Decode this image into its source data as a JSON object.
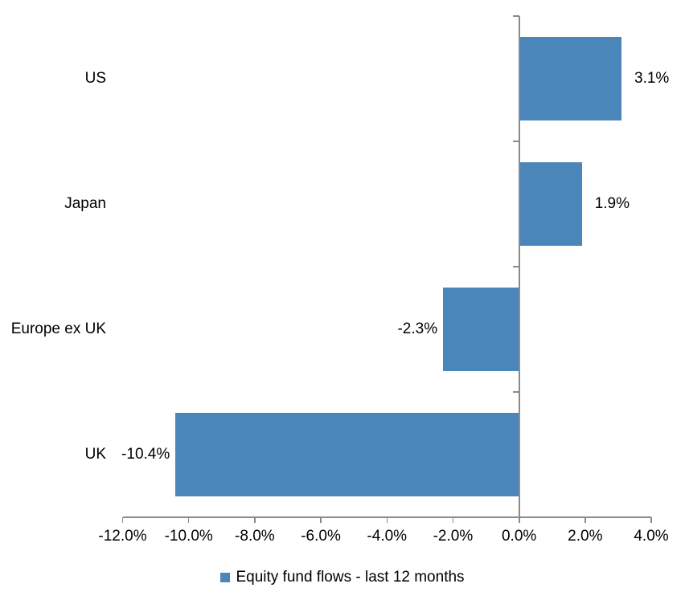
{
  "chart_data": {
    "type": "bar",
    "orientation": "horizontal",
    "title": "",
    "xlabel": "",
    "ylabel": "",
    "categories": [
      "US",
      "Japan",
      "Europe ex UK",
      "UK"
    ],
    "series": [
      {
        "name": "Equity fund flows - last 12 months",
        "values": [
          3.1,
          1.9,
          -2.3,
          -10.4
        ],
        "value_labels": [
          "3.1%",
          "1.9%",
          "-2.3%",
          "-10.4%"
        ]
      }
    ],
    "xlim": [
      -12,
      4
    ],
    "x_ticks": [
      -12,
      -10,
      -8,
      -6,
      -4,
      -2,
      0,
      2,
      4
    ],
    "x_tick_labels": [
      "-12.0%",
      "-10.0%",
      "-8.0%",
      "-6.0%",
      "-4.0%",
      "-2.0%",
      "0.0%",
      "2.0%",
      "4.0%"
    ],
    "grid": false,
    "legend_position": "bottom",
    "bar_color": "#4B86BA",
    "axis_color": "#8A8A8A",
    "text_color": "#000000"
  }
}
